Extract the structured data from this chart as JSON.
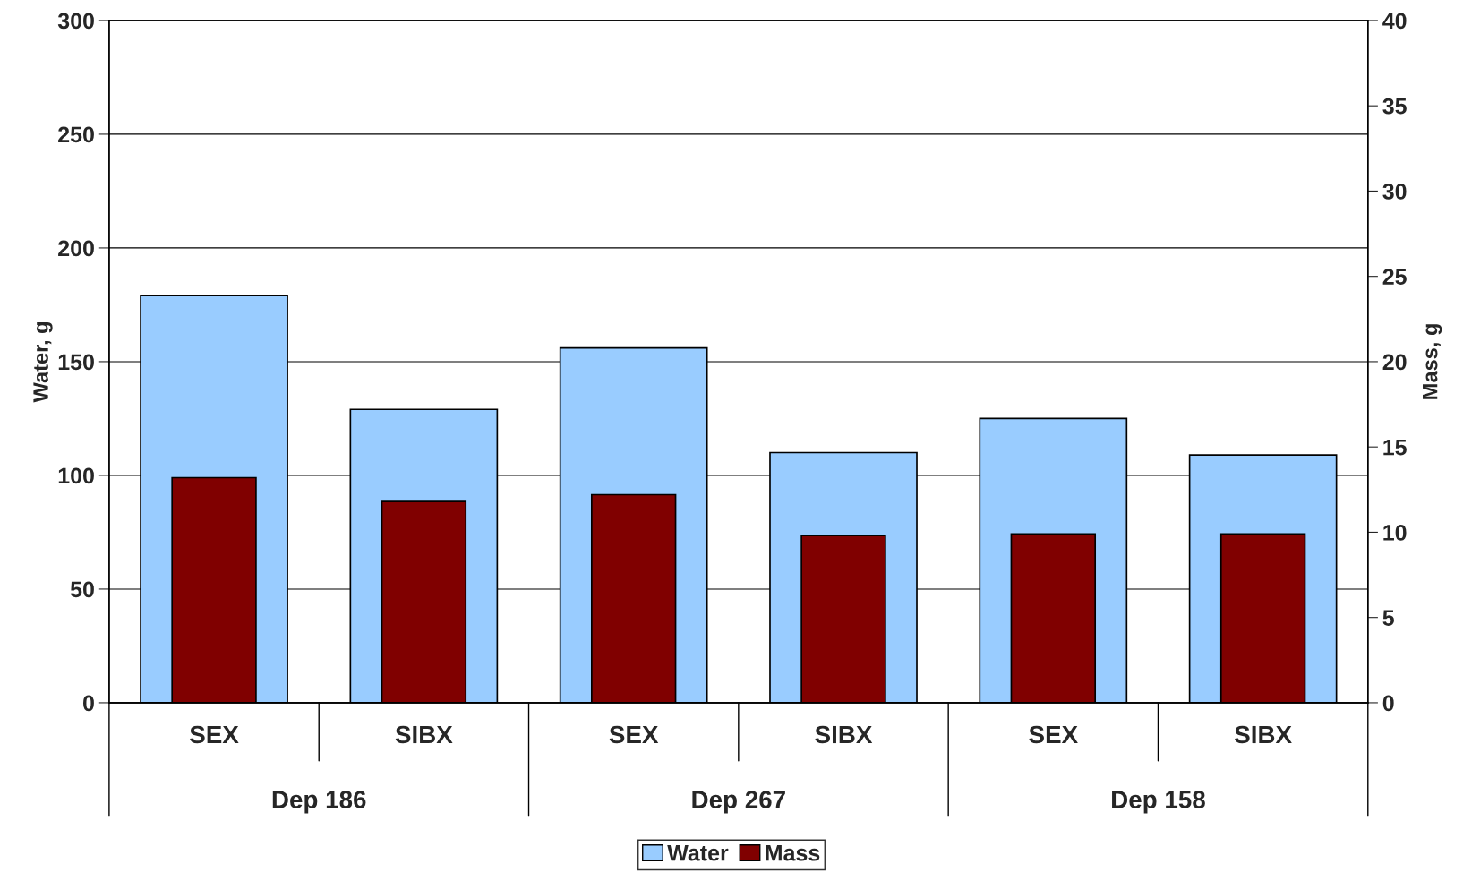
{
  "chart_data": {
    "type": "bar",
    "categories": [
      "SEX",
      "SIBX",
      "SEX",
      "SIBX",
      "SEX",
      "SIBX"
    ],
    "annotations": [
      "Dep 186",
      "Dep 267",
      "Dep 158"
    ],
    "series": [
      {
        "name": "Water",
        "color": "#99ccff",
        "values": [
          179,
          129,
          156,
          110,
          125,
          109
        ]
      },
      {
        "name": "Mass",
        "color": "#800000",
        "axis": "y2",
        "values": [
          13.2,
          11.8,
          12.2,
          9.8,
          9.9,
          9.9
        ]
      }
    ],
    "ylabel": "Water, g",
    "y2label": "Mass, g",
    "ylim": [
      0,
      300
    ],
    "yticks": [
      0,
      50,
      100,
      150,
      200,
      250,
      300
    ],
    "y2lim": [
      0,
      40
    ],
    "y2ticks": [
      0,
      5,
      10,
      15,
      20,
      25,
      30,
      35,
      40
    ],
    "grid": "y",
    "legend": "bottom"
  }
}
